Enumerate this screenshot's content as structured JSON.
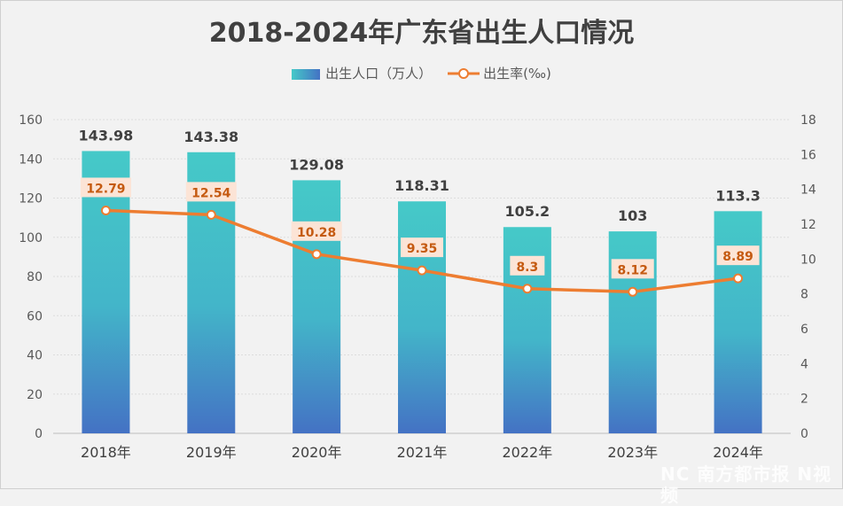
{
  "chart_data": {
    "type": "bar+line",
    "title": "2018-2024年广东省出生人口情况",
    "categories": [
      "2018年",
      "2019年",
      "2020年",
      "2021年",
      "2022年",
      "2023年",
      "2024年"
    ],
    "series": [
      {
        "name": "出生人口（万人）",
        "type": "bar",
        "axis": "left",
        "values": [
          143.98,
          143.38,
          129.08,
          118.31,
          105.2,
          103,
          113.3
        ]
      },
      {
        "name": "出生率(‰)",
        "type": "line",
        "axis": "right",
        "values": [
          12.79,
          12.54,
          10.28,
          9.35,
          8.3,
          8.12,
          8.89
        ]
      }
    ],
    "ylim_left": [
      0,
      160
    ],
    "yticks_left": [
      0,
      20,
      40,
      60,
      80,
      100,
      120,
      140,
      160
    ],
    "ylim_right": [
      0,
      18
    ],
    "yticks_right": [
      0,
      2,
      4,
      6,
      8,
      10,
      12,
      14,
      16,
      18
    ],
    "legend": "top",
    "grid": true,
    "colors": {
      "bar_top": "#45c9c8",
      "bar_bottom": "#4472c4",
      "line": "#ed7d31",
      "label_box": "#fce4d6",
      "line_label": "#c55a11"
    }
  },
  "watermark": "NC 南方都市报 N视频"
}
